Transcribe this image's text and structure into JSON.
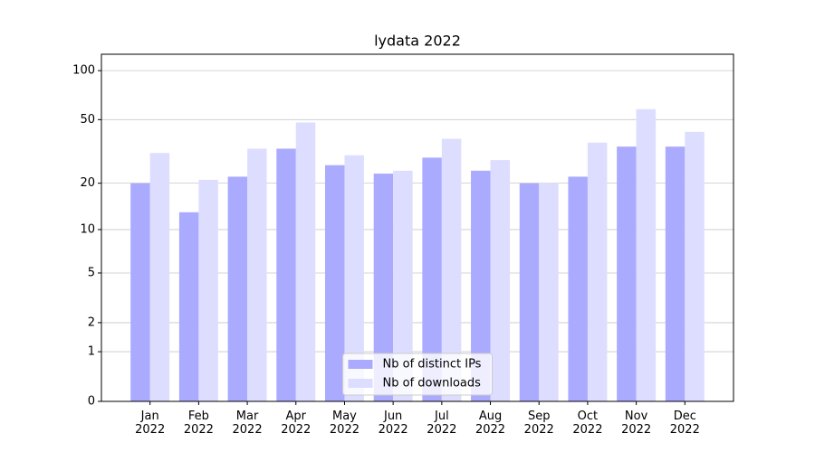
{
  "chart_data": {
    "type": "bar",
    "title": "lydata 2022",
    "categories": [
      "Jan\n2022",
      "Feb\n2022",
      "Mar\n2022",
      "Apr\n2022",
      "May\n2022",
      "Jun\n2022",
      "Jul\n2022",
      "Aug\n2022",
      "Sep\n2022",
      "Oct\n2022",
      "Nov\n2022",
      "Dec\n2022"
    ],
    "series": [
      {
        "name": "Nb of distinct IPs",
        "color": "#aaaaff",
        "values": [
          20,
          13,
          22,
          33,
          26,
          23,
          29,
          24,
          20,
          22,
          34,
          34
        ]
      },
      {
        "name": "Nb of downloads",
        "color": "#ddddff",
        "values": [
          31,
          21,
          33,
          48,
          30,
          24,
          38,
          28,
          20,
          36,
          58,
          42
        ]
      }
    ],
    "yscale": "log1p",
    "ylim": [
      0,
      126
    ],
    "yticks": [
      0,
      1,
      2,
      5,
      10,
      20,
      50,
      100
    ],
    "grid": true,
    "legend": "lower center"
  }
}
